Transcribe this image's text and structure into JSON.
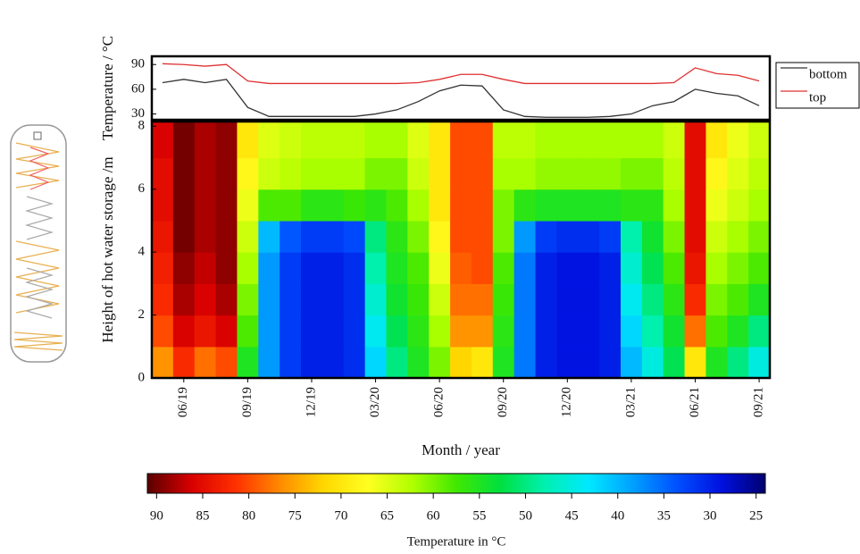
{
  "chart_data": [
    {
      "type": "line",
      "y_label": "Temperature / °C",
      "ylim": [
        23,
        100
      ],
      "yticks": [
        30,
        60,
        90
      ],
      "legend": "outside-right",
      "series": [
        {
          "name": "bottom",
          "color": "#333333",
          "values": [
            68,
            72,
            68,
            72,
            38,
            27,
            27,
            27,
            27,
            27,
            30,
            35,
            45,
            58,
            65,
            64,
            35,
            27,
            26,
            26,
            26,
            27,
            30,
            40,
            45,
            60,
            55,
            52,
            40
          ]
        },
        {
          "name": "top",
          "color": "#e03030",
          "values": [
            91,
            90,
            88,
            90,
            70,
            67,
            67,
            67,
            67,
            67,
            67,
            67,
            68,
            72,
            78,
            78,
            72,
            67,
            67,
            67,
            67,
            67,
            67,
            67,
            68,
            86,
            79,
            77,
            70
          ]
        }
      ]
    },
    {
      "type": "heatmap",
      "x_label": "Month / year",
      "y_label": "Height of hot water storage /m",
      "categories": [
        null,
        "06/19",
        null,
        null,
        "09/19",
        null,
        null,
        "12/19",
        null,
        null,
        "03/20",
        null,
        null,
        "06/20",
        null,
        null,
        "09/20",
        null,
        null,
        "12/20",
        null,
        null,
        "03/21",
        null,
        null,
        "06/21",
        null,
        null,
        "09/21"
      ],
      "y": [
        0.5,
        1.5,
        2.5,
        3.5,
        4.5,
        5.5,
        6.5,
        7.5
      ],
      "ylim": [
        0,
        8.15
      ],
      "yticks": [
        0,
        2,
        4,
        6,
        8
      ],
      "values": [
        [
          76,
          82,
          78,
          80,
          55,
          38,
          32,
          30,
          30,
          31,
          42,
          50,
          55,
          60,
          72,
          70,
          55,
          36,
          30,
          29,
          29,
          30,
          40,
          45,
          52,
          70,
          55,
          50,
          45
        ],
        [
          80,
          86,
          84,
          86,
          58,
          38,
          32,
          30,
          30,
          31,
          44,
          52,
          56,
          62,
          76,
          76,
          56,
          36,
          30,
          29,
          29,
          30,
          42,
          48,
          54,
          78,
          58,
          55,
          50
        ],
        [
          82,
          88,
          86,
          88,
          60,
          38,
          32,
          30,
          30,
          31,
          46,
          54,
          57,
          64,
          78,
          78,
          57,
          36,
          30,
          29,
          29,
          30,
          44,
          50,
          56,
          82,
          60,
          58,
          55
        ],
        [
          83,
          89,
          87,
          89,
          62,
          38,
          32,
          30,
          30,
          31,
          48,
          55,
          58,
          66,
          79,
          80,
          58,
          36,
          30,
          29,
          29,
          30,
          46,
          52,
          58,
          84,
          62,
          60,
          58
        ],
        [
          84,
          90,
          88,
          89,
          64,
          40,
          34,
          32,
          32,
          33,
          50,
          56,
          60,
          68,
          80,
          80,
          60,
          38,
          32,
          31,
          31,
          32,
          48,
          54,
          60,
          85,
          64,
          62,
          60
        ],
        [
          85,
          90,
          88,
          89,
          66,
          58,
          58,
          56,
          56,
          57,
          56,
          58,
          62,
          70,
          80,
          80,
          60,
          56,
          55,
          55,
          55,
          55,
          56,
          56,
          62,
          85,
          66,
          64,
          62
        ],
        [
          85,
          90,
          88,
          89,
          68,
          64,
          63,
          62,
          62,
          62,
          60,
          60,
          64,
          70,
          80,
          80,
          62,
          62,
          61,
          61,
          61,
          61,
          60,
          60,
          63,
          85,
          68,
          65,
          63
        ],
        [
          86,
          90,
          88,
          89,
          70,
          65,
          64,
          63,
          63,
          63,
          62,
          62,
          65,
          70,
          80,
          80,
          63,
          63,
          62,
          62,
          62,
          62,
          62,
          62,
          64,
          85,
          70,
          66,
          64
        ]
      ],
      "colorbar_label": "Temperature in °C",
      "clim": [
        91,
        24
      ],
      "cticks": [
        90,
        85,
        80,
        75,
        70,
        65,
        60,
        55,
        50,
        45,
        40,
        35,
        30,
        25
      ],
      "colorscale": [
        "#5a0000",
        "#d80000",
        "#ff3000",
        "#ff8a00",
        "#ffd800",
        "#ffff20",
        "#b0ff00",
        "#40e800",
        "#00e040",
        "#00f0b0",
        "#00e8ff",
        "#00a0ff",
        "#0050ff",
        "#0010e0",
        "#000070"
      ]
    }
  ]
}
